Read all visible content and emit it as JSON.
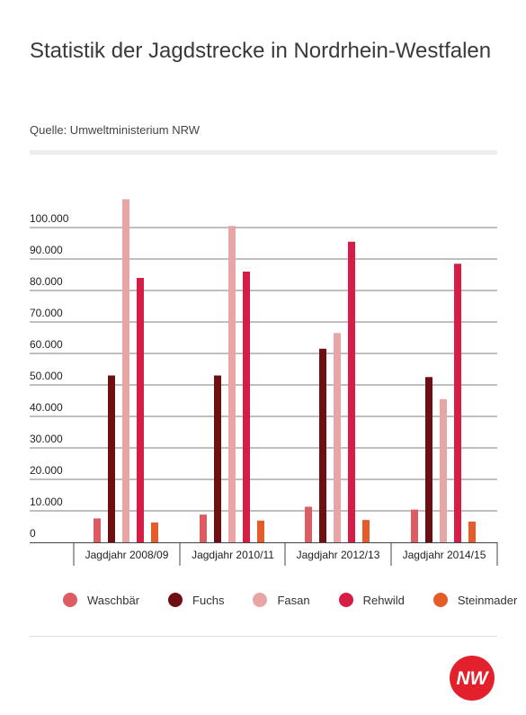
{
  "header": {
    "title": "Statistik der Jagdstrecke in Nordrhein-Westfalen",
    "source": "Quelle: Umweltministerium NRW"
  },
  "logo": {
    "text": "NW",
    "color": "#e2212c"
  },
  "chart_data": {
    "type": "bar",
    "categories": [
      "Jagdjahr 2008/09",
      "Jagdjahr 2010/11",
      "Jagdjahr 2012/13",
      "Jagdjahr 2014/15"
    ],
    "series": [
      {
        "name": "Waschbär",
        "color": "#dc5c62",
        "values": [
          7600,
          8800,
          11300,
          10400
        ]
      },
      {
        "name": "Fuchs",
        "color": "#6e0f14",
        "values": [
          53000,
          53000,
          61500,
          52500
        ]
      },
      {
        "name": "Fasan",
        "color": "#e8a5a5",
        "values": [
          109000,
          100500,
          66500,
          45500
        ]
      },
      {
        "name": "Rehwild",
        "color": "#d61d45",
        "values": [
          84000,
          86000,
          95500,
          88500
        ]
      },
      {
        "name": "Steinmader",
        "color": "#e35c2a",
        "values": [
          6300,
          6900,
          7100,
          6600
        ]
      }
    ],
    "y_ticks": [
      "0",
      "10.000",
      "20.000",
      "30.000",
      "40.000",
      "50.000",
      "60.000",
      "70.000",
      "80.000",
      "90.000",
      "100.000"
    ],
    "y_tick_values": [
      0,
      10000,
      20000,
      30000,
      40000,
      50000,
      60000,
      70000,
      80000,
      90000,
      100000
    ],
    "ylim": [
      0,
      110000
    ],
    "grid": true,
    "legend_position": "bottom",
    "xlabel": "",
    "ylabel": ""
  }
}
